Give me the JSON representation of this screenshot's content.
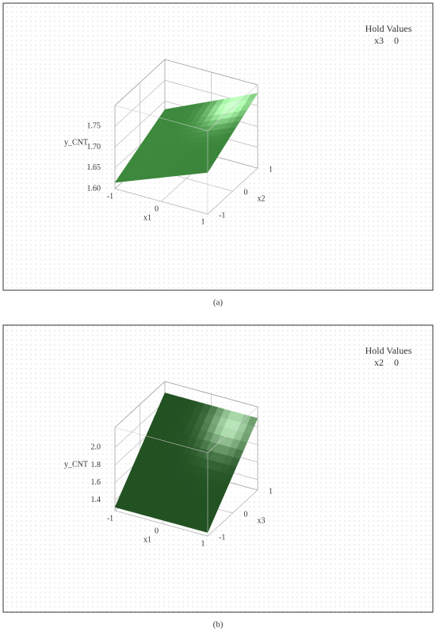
{
  "chart_data": [
    {
      "type": "surface",
      "caption": "(a)",
      "hold_title": "Hold Values",
      "hold_label": "x3",
      "hold_value": 0,
      "xlabel": "x1",
      "ylabel": "x2",
      "zlabel": "y_CNT",
      "x": [
        -1,
        1
      ],
      "y": [
        -1,
        1
      ],
      "z": [
        [
          1.615,
          1.7
        ],
        [
          1.68,
          1.78
        ]
      ],
      "color": "#3f8f3f",
      "xlim": [
        -1,
        1
      ],
      "ylim": [
        -1,
        1
      ],
      "zlim": [
        1.6,
        1.8
      ],
      "xticks": [
        -1,
        0,
        1
      ],
      "yticks": [
        -1,
        0,
        1
      ],
      "zticks": [
        {
          "value": 1.6,
          "label": "1.60"
        },
        1.65,
        {
          "value": 1.7,
          "label": "1.70"
        },
        1.75
      ],
      "grid": true
    },
    {
      "type": "surface",
      "caption": "(b)",
      "hold_title": "Hold Values",
      "hold_label": "x2",
      "hold_value": 0,
      "xlabel": "x1",
      "ylabel": "x3",
      "zlabel": "y_CNT",
      "x": [
        -1,
        1
      ],
      "y": [
        -1,
        1
      ],
      "z": [
        [
          1.32,
          1.32
        ],
        [
          2.1,
          2.1
        ]
      ],
      "color": "#2f6f2f",
      "xlim": [
        -1,
        1
      ],
      "ylim": [
        -1,
        1
      ],
      "zlim": [
        1.28,
        2.23
      ],
      "xticks": [
        -1,
        0,
        1
      ],
      "yticks": [
        -1,
        0,
        1
      ],
      "zticks": [
        1.4,
        1.6,
        1.8,
        {
          "value": 2,
          "label": "2.0"
        }
      ],
      "grid": true
    }
  ]
}
